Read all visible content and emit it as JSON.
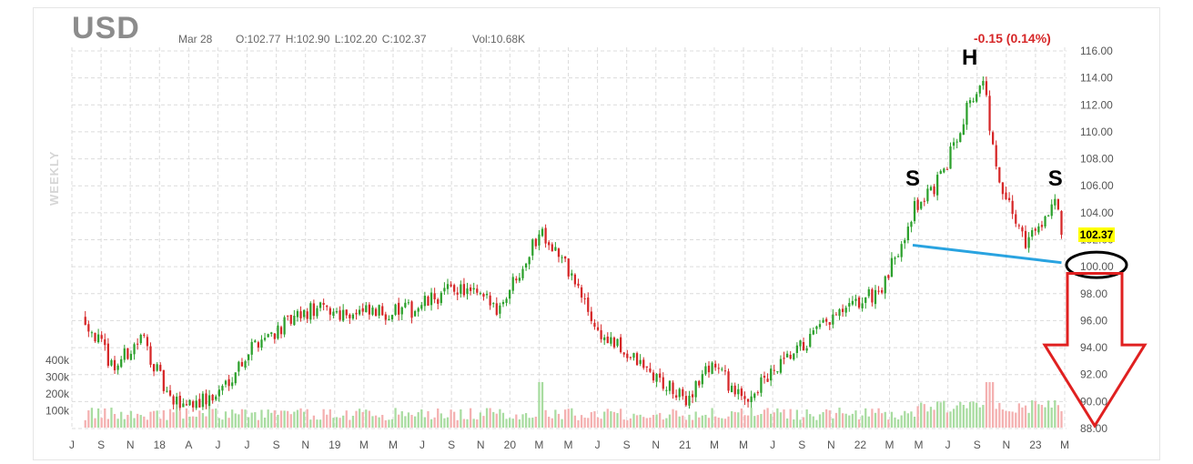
{
  "header": {
    "symbol": "USD",
    "date": "Mar 28",
    "ohlc": "O:102.77  H:102.90  L:102.20  C:102.37",
    "volume": "Vol:10.68K",
    "change": "-0.15 (0.14%)",
    "period": "WEEKLY"
  },
  "chart_data": {
    "type": "candlestick",
    "symbol": "USD",
    "interval": "weekly",
    "last_price": 102.37,
    "change": "-0.15 (0.14%)",
    "ylim": [
      88,
      116
    ],
    "y_ticks": [
      "88.00",
      "90.00",
      "92.00",
      "94.00",
      "96.00",
      "98.00",
      "100.00",
      "102.00",
      "104.00",
      "106.00",
      "108.00",
      "110.00",
      "112.00",
      "114.00",
      "116.00"
    ],
    "volume_ticks": [
      "100k",
      "200k",
      "300k",
      "400k"
    ],
    "x_ticks": [
      "J",
      "S",
      "N",
      "18",
      "A",
      "J",
      "J",
      "S",
      "N",
      "19",
      "M",
      "M",
      "J",
      "S",
      "N",
      "20",
      "M",
      "M",
      "J",
      "S",
      "N",
      "21",
      "M",
      "M",
      "J",
      "S",
      "N",
      "22",
      "M",
      "M",
      "J",
      "S",
      "N",
      "23",
      "M"
    ],
    "grid": true,
    "approx_close_path": [
      {
        "date": "2017-07",
        "close": 96.2
      },
      {
        "date": "2017-09",
        "close": 92.5
      },
      {
        "date": "2017-11",
        "close": 94.8
      },
      {
        "date": "2018-01",
        "close": 89.8
      },
      {
        "date": "2018-04",
        "close": 90.2
      },
      {
        "date": "2018-07",
        "close": 94.5
      },
      {
        "date": "2018-11",
        "close": 96.8
      },
      {
        "date": "2019-03",
        "close": 96.5
      },
      {
        "date": "2019-06",
        "close": 96.8
      },
      {
        "date": "2019-09",
        "close": 98.5
      },
      {
        "date": "2019-12",
        "close": 97.0
      },
      {
        "date": "2020-03",
        "close": 102.8
      },
      {
        "date": "2020-05",
        "close": 99.5
      },
      {
        "date": "2020-07",
        "close": 95.0
      },
      {
        "date": "2020-09",
        "close": 93.5
      },
      {
        "date": "2021-01",
        "close": 90.0
      },
      {
        "date": "2021-03",
        "close": 93.0
      },
      {
        "date": "2021-05",
        "close": 90.0
      },
      {
        "date": "2021-08",
        "close": 92.8
      },
      {
        "date": "2021-11",
        "close": 95.8
      },
      {
        "date": "2022-03",
        "close": 98.5
      },
      {
        "date": "2022-05",
        "close": 104.2
      },
      {
        "date": "2022-07",
        "close": 106.5
      },
      {
        "date": "2022-09",
        "close": 112.5
      },
      {
        "date": "2022-10",
        "close": 113.5
      },
      {
        "date": "2022-11",
        "close": 106.0
      },
      {
        "date": "2023-01",
        "close": 101.8
      },
      {
        "date": "2023-03",
        "close": 105.0
      },
      {
        "date": "2023-03-28",
        "close": 102.37
      }
    ],
    "annotations": [
      {
        "text": "S",
        "date": "2022-05",
        "price": 106.0
      },
      {
        "text": "H",
        "date": "2022-09",
        "price": 115.0
      },
      {
        "text": "S",
        "date": "2023-03",
        "price": 106.0
      }
    ],
    "neckline": [
      {
        "date": "2022-05",
        "price": 101.6
      },
      {
        "date": "2023-03-28",
        "price": 100.3
      }
    ],
    "target_circle": {
      "price": 100.0
    },
    "colors": {
      "up": "#2ca02c",
      "down": "#d62728",
      "neckline": "#29a3e0",
      "arrow": "#e02020",
      "circle": "#000000",
      "last_price_bg": "#ffff00"
    }
  }
}
